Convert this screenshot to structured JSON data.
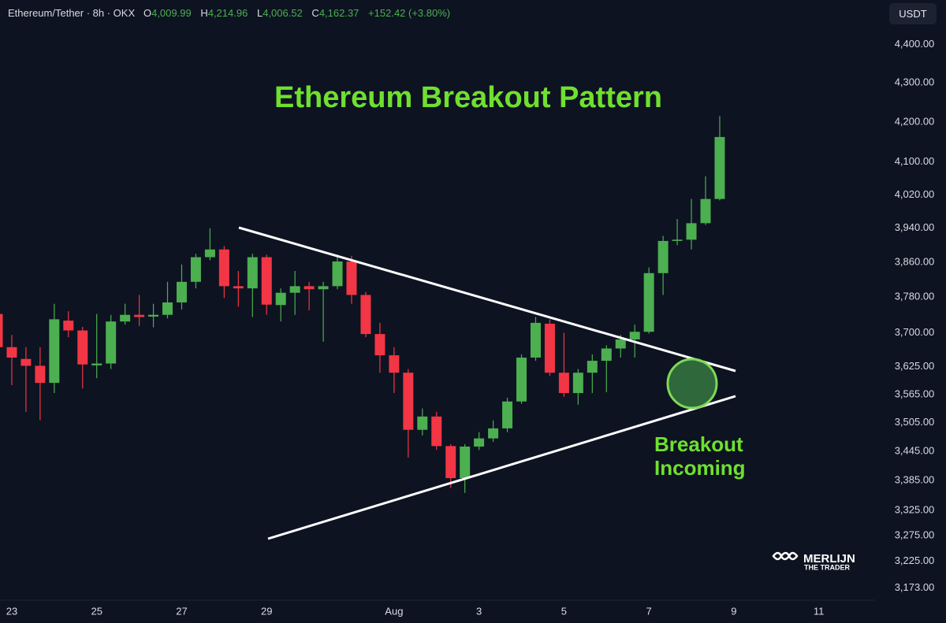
{
  "header": {
    "symbol": "Ethereum/Tether · 8h · OKX",
    "open_label": "O",
    "open": "4,009.99",
    "high_label": "H",
    "high": "4,214.96",
    "low_label": "L",
    "low": "4,006.52",
    "close_label": "C",
    "close": "4,162.37",
    "change": "+152.42 (+3.80%)"
  },
  "currency_button": "USDT",
  "logo": {
    "name": "MERLIJN",
    "tagline": "THE TRADER"
  },
  "chart_data": {
    "type": "candlestick",
    "title": "Ethereum Breakout Pattern",
    "annotation": [
      "Breakout",
      "Incoming"
    ],
    "categories": [
      null,
      "23",
      null,
      null,
      null,
      null,
      null,
      "25",
      null,
      null,
      null,
      null,
      null,
      "27",
      null,
      null,
      null,
      null,
      null,
      "29",
      null,
      null,
      null,
      null,
      null,
      null,
      null,
      null,
      "Aug",
      null,
      null,
      null,
      null,
      null,
      "3",
      null,
      null,
      null,
      null,
      null,
      "5",
      null,
      null,
      null,
      null,
      null,
      "7",
      null,
      null,
      null,
      null,
      null,
      "9",
      null,
      null,
      null,
      null,
      null,
      "11",
      null,
      null,
      null
    ],
    "open": [
      3742,
      3668,
      3642,
      3627,
      3590,
      3727,
      3705,
      3628,
      3632,
      3725,
      3740,
      3736,
      3740,
      3768,
      3815,
      3872,
      3890,
      3805,
      3800,
      3872,
      3762,
      3790,
      3805,
      3798,
      3805,
      3862,
      3785,
      3697,
      3650,
      3612,
      3490,
      3518,
      3456,
      3390,
      3455,
      3472,
      3493,
      3550,
      3645,
      3720,
      3612,
      3568,
      3612,
      3638,
      3665,
      3685,
      3702,
      3835,
      3910,
      3913,
      3952,
      4009.99,
      null,
      null,
      null,
      null,
      null,
      null,
      null,
      null,
      null,
      null
    ],
    "high": [
      3750,
      3695,
      3668,
      3668,
      3765,
      3748,
      3713,
      3742,
      3740,
      3765,
      3785,
      3765,
      3815,
      3855,
      3880,
      3940,
      3898,
      3840,
      3880,
      3878,
      3800,
      3840,
      3815,
      3815,
      3878,
      3875,
      3792,
      3722,
      3668,
      3620,
      3535,
      3528,
      3460,
      3460,
      3485,
      3510,
      3558,
      3652,
      3735,
      3730,
      3700,
      3620,
      3652,
      3672,
      3695,
      3718,
      3848,
      3922,
      3962,
      4010,
      4065,
      4214.96,
      null,
      null,
      null,
      null,
      null,
      null,
      null,
      null,
      null,
      null
    ],
    "low": [
      3660,
      3585,
      3528,
      3510,
      3568,
      3690,
      3578,
      3600,
      3620,
      3718,
      3715,
      3712,
      3732,
      3752,
      3800,
      3865,
      3778,
      3758,
      3735,
      3740,
      3725,
      3740,
      3750,
      3680,
      3798,
      3765,
      3690,
      3612,
      3568,
      3432,
      3478,
      3448,
      3370,
      3360,
      3448,
      3465,
      3485,
      3545,
      3638,
      3605,
      3560,
      3543,
      3568,
      3570,
      3645,
      3645,
      3698,
      3785,
      3900,
      3890,
      3948,
      4006.52,
      null,
      null,
      null,
      null,
      null,
      null,
      null,
      null,
      null,
      null
    ],
    "close": [
      3668,
      3645,
      3627,
      3590,
      3730,
      3705,
      3630,
      3632,
      3725,
      3740,
      3735,
      3740,
      3768,
      3815,
      3872,
      3890,
      3805,
      3800,
      3872,
      3763,
      3790,
      3805,
      3798,
      3805,
      3862,
      3785,
      3697,
      3650,
      3612,
      3490,
      3518,
      3456,
      3390,
      3455,
      3472,
      3493,
      3550,
      3645,
      3722,
      3612,
      3568,
      3612,
      3638,
      3665,
      3685,
      3702,
      3835,
      3910,
      3913,
      3952,
      4010,
      4162.37,
      null,
      null,
      null,
      null,
      null,
      null,
      null,
      null,
      null,
      null
    ],
    "up_color": "#4caf50",
    "down_color": "#f23645",
    "log_scale": true,
    "grid": false,
    "ylim": [
      3150,
      4520
    ],
    "yticks": [
      {
        "value": 4400,
        "label": "4,400.00"
      },
      {
        "value": 4300,
        "label": "4,300.00"
      },
      {
        "value": 4200,
        "label": "4,200.00"
      },
      {
        "value": 4100,
        "label": "4,100.00"
      },
      {
        "value": 4020,
        "label": "4,020.00"
      },
      {
        "value": 3940,
        "label": "3,940.00"
      },
      {
        "value": 3860,
        "label": "3,860.00"
      },
      {
        "value": 3780,
        "label": "3,780.00"
      },
      {
        "value": 3700,
        "label": "3,700.00"
      },
      {
        "value": 3625,
        "label": "3,625.00"
      },
      {
        "value": 3565,
        "label": "3,565.00"
      },
      {
        "value": 3505,
        "label": "3,505.00"
      },
      {
        "value": 3445,
        "label": "3,445.00"
      },
      {
        "value": 3385,
        "label": "3,385.00"
      },
      {
        "value": 3325,
        "label": "3,325.00"
      },
      {
        "value": 3275,
        "label": "3,275.00"
      },
      {
        "value": 3225,
        "label": "3,225.00"
      },
      {
        "value": 3173,
        "label": "3,173.00"
      }
    ]
  }
}
